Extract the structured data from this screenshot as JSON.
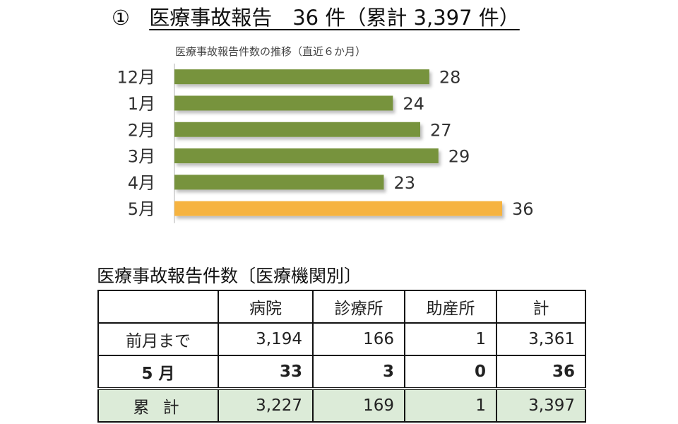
{
  "header": {
    "section_number": "①",
    "title": "医療事故報告　36 件（累計 3,397 件）"
  },
  "chart_data": {
    "type": "bar",
    "orientation": "horizontal",
    "title": "医療事故報告件数の推移（直近６か月）",
    "categories": [
      "12月",
      "1月",
      "2月",
      "3月",
      "4月",
      "5月"
    ],
    "values": [
      28,
      24,
      27,
      29,
      23,
      36
    ],
    "value_labels": [
      "28",
      "24",
      "27",
      "29",
      "23",
      "36"
    ],
    "highlight_index": 5,
    "xlim": [
      0,
      36
    ],
    "grid": false,
    "legend": "none",
    "colors": {
      "bar": "#77933c",
      "highlight": "#f6b33f",
      "axis": "#cccccc"
    }
  },
  "table": {
    "title": "医療事故報告件数〔医療機関別〕",
    "headers": [
      "",
      "病院",
      "診療所",
      "助産所",
      "計"
    ],
    "rows": [
      {
        "label": "前月まで",
        "values": [
          "3,194",
          "166",
          "1",
          "3,361"
        ]
      },
      {
        "label": "5 月",
        "values": [
          "33",
          "3",
          "0",
          "36"
        ]
      },
      {
        "label": "累 計",
        "values": [
          "3,227",
          "169",
          "1",
          "3,397"
        ]
      }
    ]
  }
}
